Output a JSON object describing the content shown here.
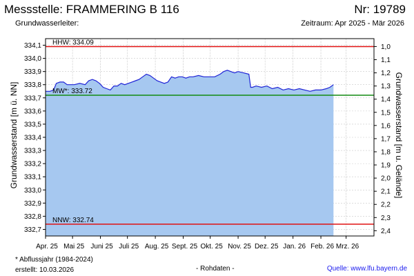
{
  "header": {
    "title": "Messstelle: FRAMMERING B 116",
    "nr": "Nr: 19789",
    "subtitle": "Grundwasserleiter:",
    "period": "Zeitraum: Apr 2025 - Mär 2026"
  },
  "footer": {
    "note": "* Abflussjahr (1984-2024)",
    "created": "erstellt:  10.03.2026",
    "raw": "- Rohdaten -",
    "source": "Quelle:  www.lfu.bayern.de"
  },
  "colors": {
    "fill": "#a6c8f0",
    "line": "#1e22d6",
    "hhw": "#e01010",
    "nnw": "#e01010",
    "mw": "#108a10",
    "grid": "#c8c8c8"
  },
  "chart_data": {
    "type": "area",
    "ylabel": "Grundwasserstand [m ü. NN]",
    "ylabel_right": "Grundwasserstand [m u. Gelände]",
    "ylim": [
      332.65,
      334.15
    ],
    "xlim_days": [
      0,
      365
    ],
    "x_ticks": [
      {
        "label": "Apr. 25",
        "day": 0
      },
      {
        "label": "Mai 25",
        "day": 30
      },
      {
        "label": "Juni 25",
        "day": 61
      },
      {
        "label": "Juli 25",
        "day": 91
      },
      {
        "label": "Aug. 25",
        "day": 122
      },
      {
        "label": "Sept. 25",
        "day": 153
      },
      {
        "label": "Okt. 25",
        "day": 183
      },
      {
        "label": "Nov. 25",
        "day": 214
      },
      {
        "label": "Dez. 25",
        "day": 244
      },
      {
        "label": "Jan. 26",
        "day": 275
      },
      {
        "label": "Feb. 26",
        "day": 306
      },
      {
        "label": "Mrz. 26",
        "day": 334
      }
    ],
    "y_ticks": [
      {
        "value": 334.1,
        "label": "334,1"
      },
      {
        "value": 334.0,
        "label": "334,0"
      },
      {
        "value": 333.9,
        "label": "333,9"
      },
      {
        "value": 333.8,
        "label": "333,8"
      },
      {
        "value": 333.7,
        "label": "333,7"
      },
      {
        "value": 333.6,
        "label": "333,6"
      },
      {
        "value": 333.5,
        "label": "333,5"
      },
      {
        "value": 333.4,
        "label": "333,4"
      },
      {
        "value": 333.3,
        "label": "333,3"
      },
      {
        "value": 333.2,
        "label": "333,2"
      },
      {
        "value": 333.1,
        "label": "333,1"
      },
      {
        "value": 333.0,
        "label": "333,0"
      },
      {
        "value": 332.9,
        "label": "332,9"
      },
      {
        "value": 332.8,
        "label": "332,8"
      },
      {
        "value": 332.7,
        "label": "332,7"
      }
    ],
    "y_right_ticks": [
      {
        "value": 334.09,
        "label": "1,0"
      },
      {
        "value": 333.99,
        "label": "1,1"
      },
      {
        "value": 333.89,
        "label": "1,2"
      },
      {
        "value": 333.79,
        "label": "1,3"
      },
      {
        "value": 333.69,
        "label": "1,4"
      },
      {
        "value": 333.59,
        "label": "1,5"
      },
      {
        "value": 333.49,
        "label": "1,6"
      },
      {
        "value": 333.39,
        "label": "1,7"
      },
      {
        "value": 333.29,
        "label": "1,8"
      },
      {
        "value": 333.19,
        "label": "1,9"
      },
      {
        "value": 333.09,
        "label": "2,0"
      },
      {
        "value": 332.99,
        "label": "2,1"
      },
      {
        "value": 332.89,
        "label": "2,2"
      },
      {
        "value": 332.79,
        "label": "2,3"
      },
      {
        "value": 332.69,
        "label": "2,4"
      }
    ],
    "reference_lines": [
      {
        "key": "hhw",
        "label": "HHW: 334.09",
        "value": 334.09
      },
      {
        "key": "mw",
        "label": "MW*: 333.72",
        "value": 333.72
      },
      {
        "key": "nnw",
        "label": "NNW: 332.74",
        "value": 332.74
      }
    ],
    "series": [
      {
        "x": [
          0,
          5,
          9,
          12,
          16,
          20,
          24,
          28,
          32,
          38,
          44,
          48,
          52,
          56,
          60,
          64,
          68,
          72,
          76,
          80,
          84,
          88,
          92,
          96,
          100,
          104,
          108,
          112,
          116,
          120,
          124,
          128,
          132,
          136,
          140,
          144,
          148,
          152,
          156,
          160,
          164,
          170,
          176,
          182,
          188,
          194,
          198,
          202,
          206,
          210,
          214,
          220,
          226,
          228,
          230,
          234,
          240,
          246,
          252,
          258,
          264,
          270,
          276,
          282,
          288,
          294,
          300,
          306,
          312,
          316,
          320
        ],
        "values": [
          333.75,
          333.75,
          333.76,
          333.81,
          333.82,
          333.82,
          333.8,
          333.8,
          333.8,
          333.81,
          333.8,
          333.83,
          333.84,
          333.83,
          333.81,
          333.78,
          333.77,
          333.76,
          333.79,
          333.79,
          333.81,
          333.8,
          333.81,
          333.82,
          333.83,
          333.84,
          333.86,
          333.88,
          333.87,
          333.85,
          333.83,
          333.82,
          333.81,
          333.82,
          333.86,
          333.85,
          333.86,
          333.86,
          333.85,
          333.86,
          333.86,
          333.87,
          333.86,
          333.86,
          333.86,
          333.88,
          333.9,
          333.91,
          333.9,
          333.89,
          333.9,
          333.89,
          333.88,
          333.78,
          333.78,
          333.79,
          333.78,
          333.79,
          333.77,
          333.78,
          333.76,
          333.77,
          333.76,
          333.77,
          333.76,
          333.75,
          333.76,
          333.76,
          333.77,
          333.78,
          333.8
        ]
      }
    ]
  }
}
